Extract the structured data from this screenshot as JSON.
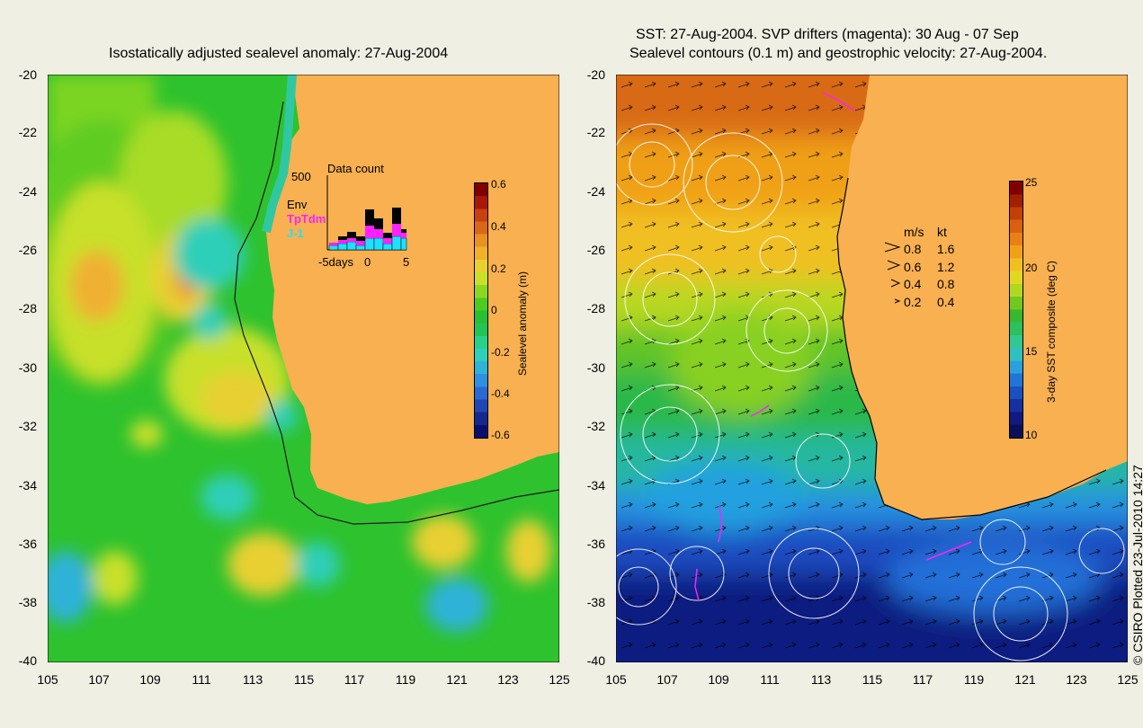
{
  "left_panel": {
    "title": "Isostatically adjusted sealevel anomaly: 27-Aug-2004",
    "y_ticks": [
      "-20",
      "-22",
      "-24",
      "-26",
      "-28",
      "-30",
      "-32",
      "-34",
      "-36",
      "-38",
      "-40"
    ],
    "x_ticks": [
      "105",
      "107",
      "109",
      "111",
      "113",
      "115",
      "117",
      "119",
      "121",
      "123",
      "125"
    ],
    "colorbar": {
      "label": "Sealevel anomaly (m)",
      "ticks": [
        "0.6",
        "0.4",
        "0.2",
        "0",
        "-0.2",
        "-0.4",
        "-0.6"
      ],
      "colors": [
        "#0a0f6e",
        "#14288f",
        "#1f46b4",
        "#2a6ad0",
        "#2f8fe0",
        "#2fb2d8",
        "#2fcfb8",
        "#2ad08a",
        "#22c555",
        "#28c030",
        "#4ccc1c",
        "#8cd820",
        "#c8e028",
        "#e8d030",
        "#f0b028",
        "#e89020",
        "#d86818",
        "#c84010",
        "#a81808",
        "#800000"
      ]
    },
    "inset": {
      "title": "Data count",
      "y_max_label": "500",
      "series_labels": [
        "Env",
        "TpTdm",
        "J-1"
      ],
      "series_colors": [
        "#000000",
        "#ff20ff",
        "#20e0ff"
      ],
      "x_labels": [
        "-5days",
        "0",
        "5"
      ]
    }
  },
  "right_panel": {
    "title_line1": "SST: 27-Aug-2004. SVP drifters (magenta): 30 Aug - 07 Sep",
    "title_line2": "Sealevel contours (0.1 m) and geostrophic velocity: 27-Aug-2004.",
    "y_ticks": [
      "-20",
      "-22",
      "-24",
      "-26",
      "-28",
      "-30",
      "-32",
      "-34",
      "-36",
      "-38",
      "-40"
    ],
    "x_ticks": [
      "105",
      "107",
      "109",
      "111",
      "113",
      "115",
      "117",
      "119",
      "121",
      "123",
      "125"
    ],
    "colorbar": {
      "label": "3-day SST composite (deg C)",
      "ticks": [
        "25",
        "20",
        "15",
        "10"
      ],
      "colors": [
        "#0a0f5a",
        "#101a80",
        "#1530a0",
        "#1a50c0",
        "#2076d8",
        "#2aa0e0",
        "#30c0c0",
        "#30c890",
        "#2cc060",
        "#38b830",
        "#70c820",
        "#b0d820",
        "#e0d820",
        "#f0c020",
        "#f0a018",
        "#e88018",
        "#d86010",
        "#c04008",
        "#a02000",
        "#800000"
      ]
    },
    "velocity_legend": {
      "header_ms": "m/s",
      "header_kt": "kt",
      "rows": [
        {
          "ms": "0.8",
          "kt": "1.6"
        },
        {
          "ms": "0.6",
          "kt": "1.2"
        },
        {
          "ms": "0.4",
          "kt": "0.8"
        },
        {
          "ms": "0.2",
          "kt": "0.4"
        }
      ]
    },
    "copyright": "© CSIRO Plotted 23-Jul-2010 14:27"
  },
  "colors": {
    "background": "#efefe4",
    "land": "#f8b050"
  }
}
